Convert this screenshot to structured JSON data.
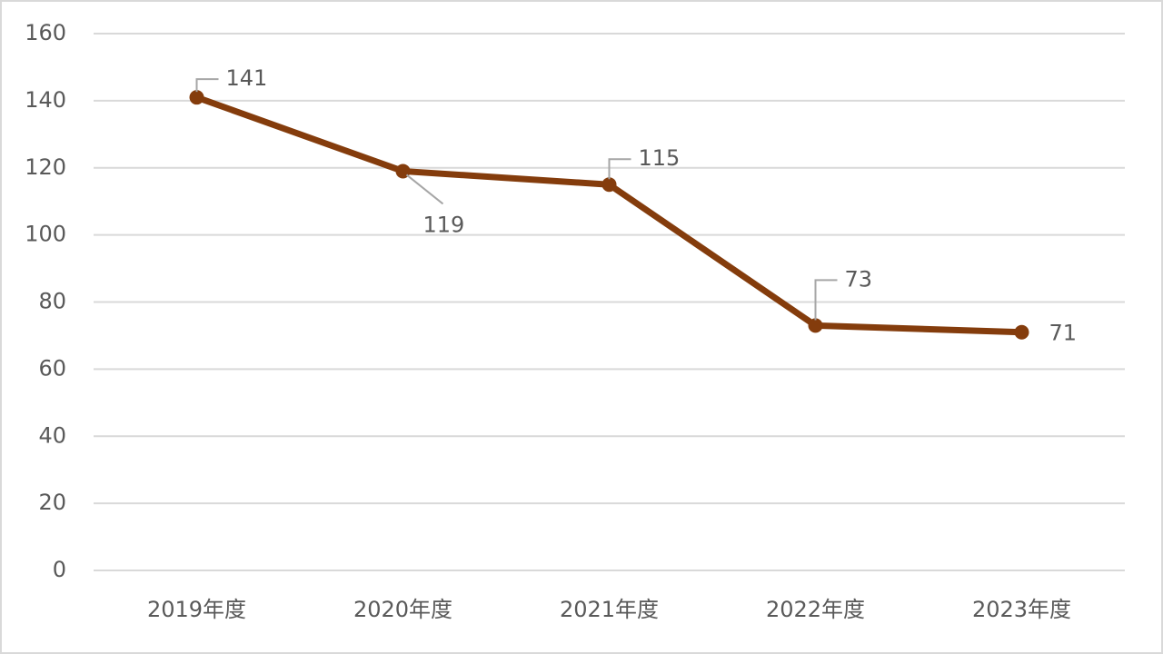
{
  "chart_data": {
    "type": "line",
    "categories": [
      "2019年度",
      "2020年度",
      "2021年度",
      "2022年度",
      "2023年度"
    ],
    "series": [
      {
        "color": "#843c0c",
        "values": [
          141,
          119,
          115,
          73,
          71
        ]
      }
    ],
    "ylim": [
      0,
      160
    ],
    "yticks": [
      0,
      20,
      40,
      60,
      80,
      100,
      120,
      140,
      160
    ],
    "grid": true
  }
}
